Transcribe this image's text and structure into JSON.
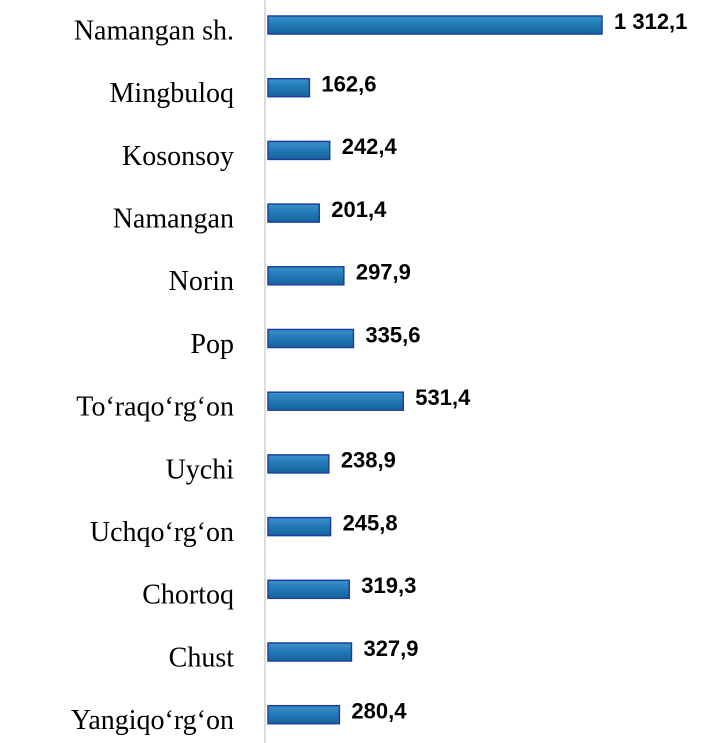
{
  "chart_data": {
    "type": "bar",
    "orientation": "horizontal",
    "categories": [
      "Namangan sh.",
      "Mingbuloq",
      "Kosonsoy",
      "Namangan",
      "Norin",
      "Pop",
      "To‘raqo‘rg‘on",
      "Uychi",
      "Uchqo‘rg‘on",
      "Chortoq",
      "Chust",
      "Yangiqo‘rg‘on"
    ],
    "values": [
      1312.1,
      162.6,
      242.4,
      201.4,
      297.9,
      335.6,
      531.4,
      238.9,
      245.8,
      319.3,
      327.9,
      280.4
    ],
    "value_labels": [
      "1 312,1",
      "162,6",
      "242,4",
      "201,4",
      "297,9",
      "335,6",
      "531,4",
      "238,9",
      "245,8",
      "319,3",
      "327,9",
      "280,4"
    ],
    "color": "#2178b4"
  }
}
